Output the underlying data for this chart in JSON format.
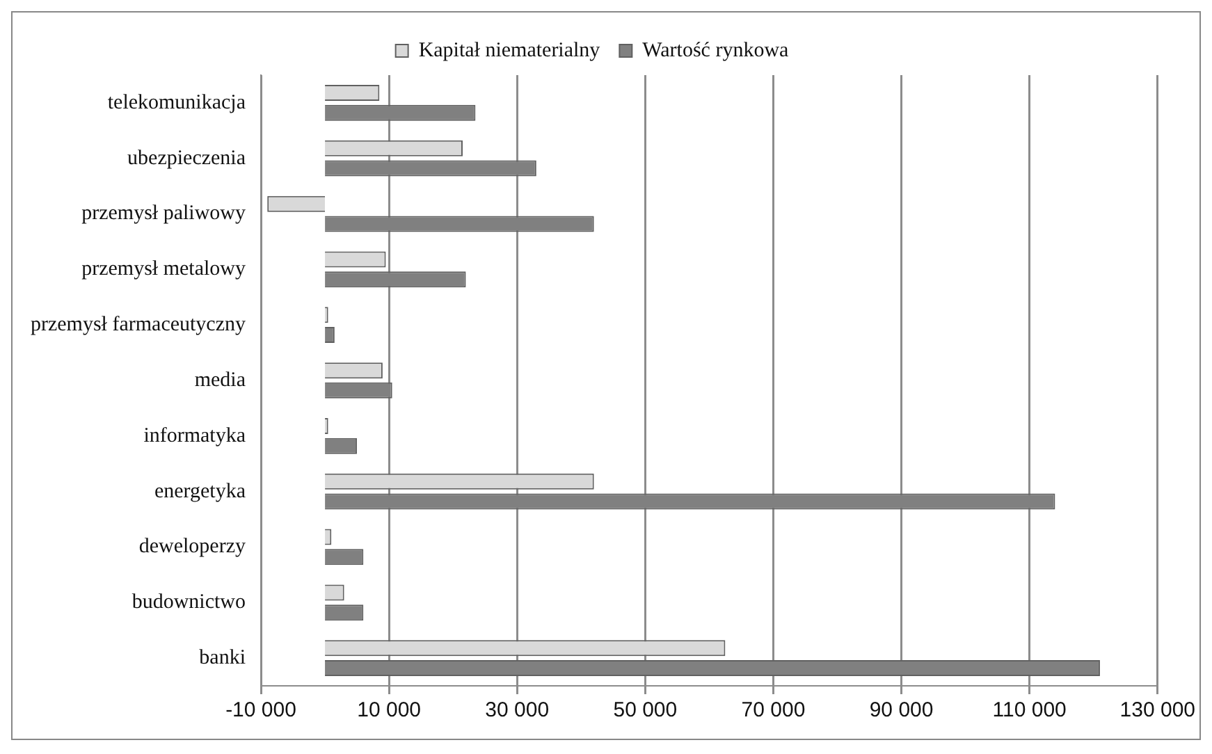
{
  "chart_data": {
    "type": "bar",
    "orientation": "horizontal",
    "categories": [
      "telekomunikacja",
      "ubezpieczenia",
      "przemysł paliwowy",
      "przemysł metalowy",
      "przemysł farmaceutyczny",
      "media",
      "informatyka",
      "energetyka",
      "deweloperzy",
      "budownictwo",
      "banki"
    ],
    "series": [
      {
        "name": "Kapitał niematerialny",
        "color": "#d9d9d9",
        "values": [
          8500,
          21500,
          -9000,
          9500,
          500,
          9000,
          500,
          42000,
          1000,
          3000,
          62500
        ]
      },
      {
        "name": "Wartość rynkowa",
        "color": "#808080",
        "values": [
          23500,
          33000,
          42000,
          22000,
          1500,
          10500,
          5000,
          114000,
          6000,
          6000,
          121000
        ]
      }
    ],
    "xlim": [
      -10000,
      130000
    ],
    "xticks": [
      {
        "value": -10000,
        "label": "-10 000"
      },
      {
        "value": 10000,
        "label": "10 000"
      },
      {
        "value": 30000,
        "label": "30 000"
      },
      {
        "value": 50000,
        "label": "50 000"
      },
      {
        "value": 70000,
        "label": "70 000"
      },
      {
        "value": 90000,
        "label": "90 000"
      },
      {
        "value": 110000,
        "label": "110 000"
      },
      {
        "value": 130000,
        "label": "130 000"
      }
    ],
    "grid": "x",
    "legend": "top"
  }
}
